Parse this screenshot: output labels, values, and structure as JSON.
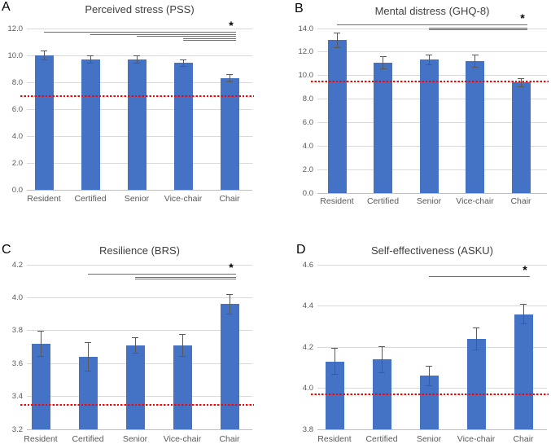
{
  "palette": {
    "background": "#ffffff",
    "bar": "#4472c4",
    "error_bar": "#595959",
    "gridline": "#d9d9d9",
    "axis_line": "#bfbfbf",
    "axis_text": "#595959",
    "title_text": "#404040",
    "panel_letter": "#000000",
    "reference_line": "#ff0000",
    "significance_line": "#6e6e6e"
  },
  "chart_data": [
    {
      "type": "bar",
      "panel": "A",
      "title": "Perceived stress (PSS)",
      "categories": [
        "Resident",
        "Certified",
        "Senior",
        "Vice-chair",
        "Chair"
      ],
      "values": [
        10.0,
        9.7,
        9.7,
        9.45,
        8.3
      ],
      "errors": [
        0.35,
        0.33,
        0.3,
        0.27,
        0.3
      ],
      "reference_line": 7.0,
      "ylim": [
        0,
        12
      ],
      "yticks": [
        "0.0",
        "2.0",
        "4.0",
        "6.0",
        "8.0",
        "10.0",
        "12.0"
      ],
      "grid": true,
      "legend": "none",
      "significance": {
        "marker": "*",
        "comparisons": [
          [
            "Resident",
            "Chair"
          ],
          [
            "Certified",
            "Chair"
          ],
          [
            "Senior",
            "Chair"
          ],
          [
            "Vice-chair",
            "Chair"
          ]
        ]
      }
    },
    {
      "type": "bar",
      "panel": "B",
      "title": "Mental distress (GHQ-8)",
      "categories": [
        "Resident",
        "Certified",
        "Senior",
        "Vice-chair",
        "Chair"
      ],
      "values": [
        13.0,
        11.1,
        11.35,
        11.25,
        9.4
      ],
      "errors": [
        0.65,
        0.55,
        0.45,
        0.55,
        0.4
      ],
      "reference_line": 9.5,
      "ylim": [
        0,
        14
      ],
      "yticks": [
        "0.0",
        "2.0",
        "4.0",
        "6.0",
        "8.0",
        "10.0",
        "12.0",
        "14.0"
      ],
      "grid": true,
      "legend": "none",
      "significance": {
        "marker": "*",
        "comparisons": [
          [
            "Resident",
            "Chair"
          ],
          [
            "Senior",
            "Chair"
          ]
        ]
      }
    },
    {
      "type": "bar",
      "panel": "C",
      "title": "Resilience (BRS)",
      "categories": [
        "Resident",
        "Certified",
        "Senior",
        "Vice-chair",
        "Chair"
      ],
      "values": [
        3.72,
        3.64,
        3.71,
        3.71,
        3.96
      ],
      "errors": [
        0.08,
        0.09,
        0.05,
        0.07,
        0.06
      ],
      "reference_line": 3.35,
      "ylim": [
        3.2,
        4.2
      ],
      "yticks": [
        "3.2",
        "3.4",
        "3.6",
        "3.8",
        "4.0",
        "4.2"
      ],
      "grid": true,
      "legend": "none",
      "significance": {
        "marker": "*",
        "comparisons": [
          [
            "Certified",
            "Chair"
          ],
          [
            "Senior",
            "Chair"
          ]
        ]
      }
    },
    {
      "type": "bar",
      "panel": "D",
      "title": "Self-effectiveness (ASKU)",
      "categories": [
        "Resident",
        "Certified",
        "Senior",
        "Vice-chair",
        "Chair"
      ],
      "values": [
        4.13,
        4.14,
        4.06,
        4.24,
        4.36
      ],
      "errors": [
        0.065,
        0.065,
        0.05,
        0.055,
        0.05
      ],
      "reference_line": 3.97,
      "ylim": [
        3.8,
        4.6
      ],
      "yticks": [
        "3.8",
        "4.0",
        "4.2",
        "4.4",
        "4.6"
      ],
      "grid": true,
      "legend": "none",
      "significance": {
        "marker": "*",
        "comparisons": [
          [
            "Senior",
            "Chair"
          ]
        ]
      }
    }
  ]
}
